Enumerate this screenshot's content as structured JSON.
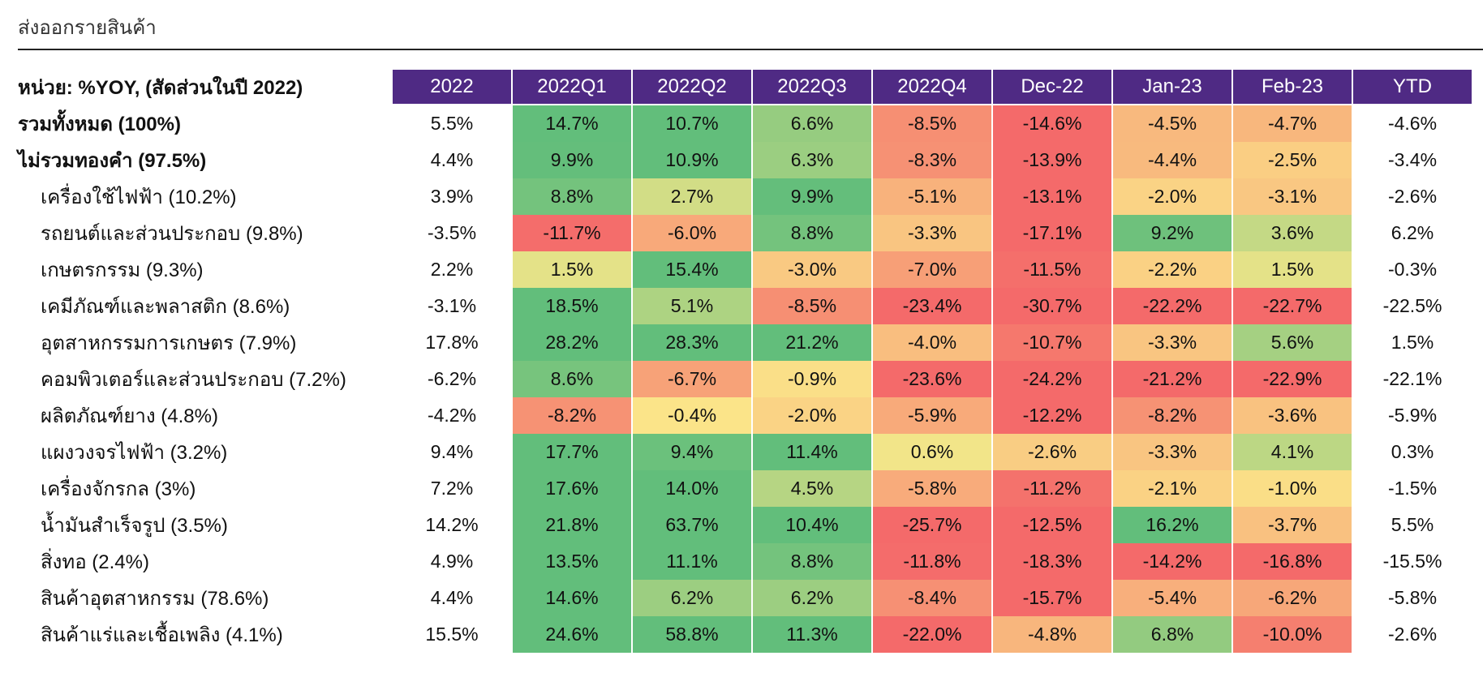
{
  "title": "ส่งออกรายสินค้า",
  "unit_label": "หน่วย: %YOY, (สัดส่วนในปี 2022)",
  "chart_data": {
    "type": "heatmap",
    "columns": [
      "2022",
      "2022Q1",
      "2022Q2",
      "2022Q3",
      "2022Q4",
      "Dec-22",
      "Jan-23",
      "Feb-23",
      "YTD"
    ],
    "colored_columns": [
      "2022Q1",
      "2022Q2",
      "2022Q3",
      "2022Q4",
      "Dec-22",
      "Jan-23",
      "Feb-23"
    ],
    "color_scale": {
      "low": "#f46a6a",
      "mid": "#fbe88a",
      "high": "#62be7b"
    },
    "header_color": "#4f2a84",
    "rows": [
      {
        "label": "รวมทั้งหมด (100%)",
        "bold": true,
        "indent": false,
        "values": [
          "5.5%",
          "14.7%",
          "10.7%",
          "6.6%",
          "-8.5%",
          "-14.6%",
          "-4.5%",
          "-4.7%",
          "-4.6%"
        ]
      },
      {
        "label": "ไม่รวมทองคำ (97.5%)",
        "bold": true,
        "indent": false,
        "values": [
          "4.4%",
          "9.9%",
          "10.9%",
          "6.3%",
          "-8.3%",
          "-13.9%",
          "-4.4%",
          "-2.5%",
          "-3.4%"
        ]
      },
      {
        "label": "เครื่องใช้ไฟฟ้า (10.2%)",
        "bold": false,
        "indent": true,
        "values": [
          "3.9%",
          "8.8%",
          "2.7%",
          "9.9%",
          "-5.1%",
          "-13.1%",
          "-2.0%",
          "-3.1%",
          "-2.6%"
        ]
      },
      {
        "label": "รถยนต์และส่วนประกอบ (9.8%)",
        "bold": false,
        "indent": true,
        "values": [
          "-3.5%",
          "-11.7%",
          "-6.0%",
          "8.8%",
          "-3.3%",
          "-17.1%",
          "9.2%",
          "3.6%",
          "6.2%"
        ]
      },
      {
        "label": "เกษตรกรรม (9.3%)",
        "bold": false,
        "indent": true,
        "values": [
          "2.2%",
          "1.5%",
          "15.4%",
          "-3.0%",
          "-7.0%",
          "-11.5%",
          "-2.2%",
          "1.5%",
          "-0.3%"
        ]
      },
      {
        "label": "เคมีภัณฑ์และพลาสติก (8.6%)",
        "bold": false,
        "indent": true,
        "values": [
          "-3.1%",
          "18.5%",
          "5.1%",
          "-8.5%",
          "-23.4%",
          "-30.7%",
          "-22.2%",
          "-22.7%",
          "-22.5%"
        ]
      },
      {
        "label": "อุตสาหกรรมการเกษตร (7.9%)",
        "bold": false,
        "indent": true,
        "values": [
          "17.8%",
          "28.2%",
          "28.3%",
          "21.2%",
          "-4.0%",
          "-10.7%",
          "-3.3%",
          "5.6%",
          "1.5%"
        ]
      },
      {
        "label": "คอมพิวเตอร์และส่วนประกอบ (7.2%)",
        "bold": false,
        "indent": true,
        "values": [
          "-6.2%",
          "8.6%",
          "-6.7%",
          "-0.9%",
          "-23.6%",
          "-24.2%",
          "-21.2%",
          "-22.9%",
          "-22.1%"
        ]
      },
      {
        "label": "ผลิตภัณฑ์ยาง (4.8%)",
        "bold": false,
        "indent": true,
        "values": [
          "-4.2%",
          "-8.2%",
          "-0.4%",
          "-2.0%",
          "-5.9%",
          "-12.2%",
          "-8.2%",
          "-3.6%",
          "-5.9%"
        ]
      },
      {
        "label": "แผงวงจรไฟฟ้า (3.2%)",
        "bold": false,
        "indent": true,
        "values": [
          "9.4%",
          "17.7%",
          "9.4%",
          "11.4%",
          "0.6%",
          "-2.6%",
          "-3.3%",
          "4.1%",
          "0.3%"
        ]
      },
      {
        "label": "เครื่องจักรกล (3%)",
        "bold": false,
        "indent": true,
        "values": [
          "7.2%",
          "17.6%",
          "14.0%",
          "4.5%",
          "-5.8%",
          "-11.2%",
          "-2.1%",
          "-1.0%",
          "-1.5%"
        ]
      },
      {
        "label": "น้ำมันสำเร็จรูป (3.5%)",
        "bold": false,
        "indent": true,
        "values": [
          "14.2%",
          "21.8%",
          "63.7%",
          "10.4%",
          "-25.7%",
          "-12.5%",
          "16.2%",
          "-3.7%",
          "5.5%"
        ]
      },
      {
        "label": "สิ่งทอ (2.4%)",
        "bold": false,
        "indent": true,
        "values": [
          "4.9%",
          "13.5%",
          "11.1%",
          "8.8%",
          "-11.8%",
          "-18.3%",
          "-14.2%",
          "-16.8%",
          "-15.5%"
        ]
      },
      {
        "label": "สินค้าอุตสาหกรรม (78.6%)",
        "bold": false,
        "indent": true,
        "values": [
          "4.4%",
          "14.6%",
          "6.2%",
          "6.2%",
          "-8.4%",
          "-15.7%",
          "-5.4%",
          "-6.2%",
          "-5.8%"
        ]
      },
      {
        "label": "สินค้าแร่และเชื้อเพลิง (4.1%)",
        "bold": false,
        "indent": true,
        "values": [
          "15.5%",
          "24.6%",
          "58.8%",
          "11.3%",
          "-22.0%",
          "-4.8%",
          "6.8%",
          "-10.0%",
          "-2.6%"
        ]
      }
    ]
  }
}
